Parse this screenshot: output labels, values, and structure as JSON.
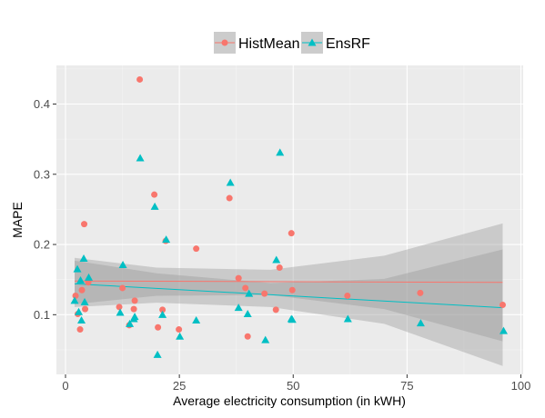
{
  "chart_data": {
    "type": "scatter",
    "title": "",
    "xlabel": "Average electricity consumption (in kWH)",
    "ylabel": "MAPE",
    "xlim": [
      -2,
      100.5
    ],
    "ylim": [
      0.015,
      0.455
    ],
    "x_ticks": [
      0,
      25,
      50,
      75,
      100
    ],
    "x_tick_labels": [
      "0",
      "25",
      "50",
      "75",
      "100"
    ],
    "y_ticks": [
      0.1,
      0.2,
      0.3,
      0.4
    ],
    "y_tick_labels": [
      "0.1",
      "0.2",
      "0.3",
      "0.4"
    ],
    "grid": true,
    "legend_position": "top",
    "series": [
      {
        "name": "HistMean",
        "color": "#F8766D",
        "marker": "circle",
        "points": [
          [
            2.2,
            0.127
          ],
          [
            2.7,
            0.101
          ],
          [
            3.2,
            0.079
          ],
          [
            3.6,
            0.135
          ],
          [
            4.1,
            0.229
          ],
          [
            4.3,
            0.108
          ],
          [
            5.0,
            0.146
          ],
          [
            11.8,
            0.111
          ],
          [
            12.5,
            0.138
          ],
          [
            14.0,
            0.085
          ],
          [
            15.2,
            0.12
          ],
          [
            16.3,
            0.435
          ],
          [
            15.0,
            0.108
          ],
          [
            19.5,
            0.271
          ],
          [
            20.3,
            0.082
          ],
          [
            21.3,
            0.107
          ],
          [
            22.0,
            0.205
          ],
          [
            24.9,
            0.079
          ],
          [
            28.7,
            0.194
          ],
          [
            36.0,
            0.266
          ],
          [
            38.0,
            0.152
          ],
          [
            39.5,
            0.138
          ],
          [
            40.0,
            0.069
          ],
          [
            43.7,
            0.13
          ],
          [
            46.2,
            0.107
          ],
          [
            47.0,
            0.167
          ],
          [
            49.6,
            0.216
          ],
          [
            49.8,
            0.135
          ],
          [
            61.9,
            0.127
          ],
          [
            77.9,
            0.131
          ],
          [
            96.0,
            0.114
          ]
        ]
      },
      {
        "name": "EnsRF",
        "color": "#00BFC4",
        "marker": "triangle",
        "points": [
          [
            2.0,
            0.12
          ],
          [
            2.6,
            0.165
          ],
          [
            2.9,
            0.104
          ],
          [
            3.3,
            0.149
          ],
          [
            3.5,
            0.092
          ],
          [
            4.0,
            0.18
          ],
          [
            4.2,
            0.118
          ],
          [
            5.1,
            0.153
          ],
          [
            12.0,
            0.103
          ],
          [
            12.6,
            0.171
          ],
          [
            14.1,
            0.087
          ],
          [
            15.0,
            0.094
          ],
          [
            15.2,
            0.097
          ],
          [
            16.4,
            0.323
          ],
          [
            19.6,
            0.254
          ],
          [
            20.2,
            0.043
          ],
          [
            21.3,
            0.1
          ],
          [
            22.1,
            0.207
          ],
          [
            25.1,
            0.069
          ],
          [
            28.7,
            0.092
          ],
          [
            36.2,
            0.288
          ],
          [
            38.0,
            0.11
          ],
          [
            40.0,
            0.101
          ],
          [
            40.3,
            0.13
          ],
          [
            43.9,
            0.064
          ],
          [
            46.3,
            0.178
          ],
          [
            47.1,
            0.331
          ],
          [
            49.6,
            0.094
          ],
          [
            49.8,
            0.093
          ],
          [
            62.0,
            0.094
          ],
          [
            78.0,
            0.088
          ],
          [
            96.2,
            0.077
          ]
        ]
      }
    ],
    "fit_lines": [
      {
        "series": "HistMean",
        "color": "#F8766D",
        "x": [
          2,
          96
        ],
        "y": [
          0.148,
          0.146
        ],
        "ci_band": [
          {
            "x": 2,
            "lower": 0.115,
            "upper": 0.181
          },
          {
            "x": 20,
            "lower": 0.127,
            "upper": 0.167
          },
          {
            "x": 45,
            "lower": 0.128,
            "upper": 0.164
          },
          {
            "x": 70,
            "lower": 0.108,
            "upper": 0.184
          },
          {
            "x": 96,
            "lower": 0.062,
            "upper": 0.23
          }
        ]
      },
      {
        "series": "EnsRF",
        "color": "#00BFC4",
        "x": [
          2,
          96
        ],
        "y": [
          0.144,
          0.11
        ],
        "ci_band": [
          {
            "x": 2,
            "lower": 0.111,
            "upper": 0.177
          },
          {
            "x": 20,
            "lower": 0.117,
            "upper": 0.159
          },
          {
            "x": 45,
            "lower": 0.111,
            "upper": 0.145
          },
          {
            "x": 70,
            "lower": 0.087,
            "upper": 0.151
          },
          {
            "x": 96,
            "lower": 0.027,
            "upper": 0.193
          }
        ]
      }
    ],
    "colors": {
      "panel_background": "#EBEBEB",
      "grid_major": "#FFFFFF",
      "grid_minor": "#F5F5F5",
      "ci_fill": "#999999",
      "legend_key_background": "#CCCCCC"
    }
  }
}
